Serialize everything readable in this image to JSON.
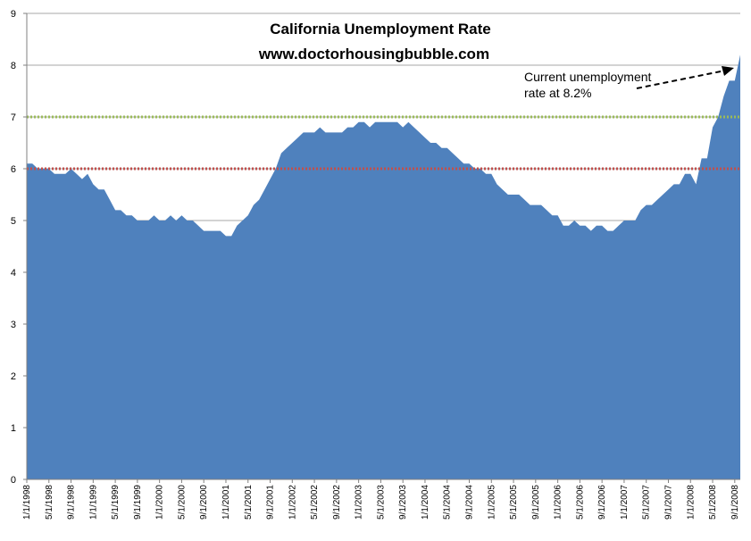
{
  "chart_data": {
    "type": "area",
    "title": "California Unemployment Rate",
    "subtitle": "www.doctorhousingbubble.com",
    "xlabel": "",
    "ylabel": "",
    "ylim": [
      0,
      9
    ],
    "yticks": [
      0,
      1,
      2,
      3,
      4,
      5,
      6,
      7,
      8,
      9
    ],
    "grid": true,
    "x_tick_labels": [
      "1/1/1998",
      "5/1/1998",
      "9/1/1998",
      "1/1/1999",
      "5/1/1999",
      "9/1/1999",
      "1/1/2000",
      "5/1/2000",
      "9/1/2000",
      "1/1/2001",
      "5/1/2001",
      "9/1/2001",
      "1/1/2002",
      "5/1/2002",
      "9/1/2002",
      "1/1/2003",
      "5/1/2003",
      "9/1/2003",
      "1/1/2004",
      "5/1/2004",
      "9/1/2004",
      "1/1/2005",
      "5/1/2005",
      "9/1/2005",
      "1/1/2006",
      "5/1/2006",
      "9/1/2006",
      "1/1/2007",
      "5/1/2007",
      "9/1/2007",
      "1/1/2008",
      "5/1/2008",
      "9/1/2008"
    ],
    "series": [
      {
        "color": "#4f81bd",
        "values": [
          6.1,
          6.1,
          6.0,
          6.0,
          6.0,
          5.9,
          5.9,
          5.9,
          6.0,
          5.9,
          5.8,
          5.9,
          5.7,
          5.6,
          5.6,
          5.4,
          5.2,
          5.2,
          5.1,
          5.1,
          5.0,
          5.0,
          5.0,
          5.1,
          5.0,
          5.0,
          5.1,
          5.0,
          5.1,
          5.0,
          5.0,
          4.9,
          4.8,
          4.8,
          4.8,
          4.8,
          4.7,
          4.7,
          4.9,
          5.0,
          5.1,
          5.3,
          5.4,
          5.6,
          5.8,
          6.0,
          6.3,
          6.4,
          6.5,
          6.6,
          6.7,
          6.7,
          6.7,
          6.8,
          6.7,
          6.7,
          6.7,
          6.7,
          6.8,
          6.8,
          6.9,
          6.9,
          6.8,
          6.9,
          6.9,
          6.9,
          6.9,
          6.9,
          6.8,
          6.9,
          6.8,
          6.7,
          6.6,
          6.5,
          6.5,
          6.4,
          6.4,
          6.3,
          6.2,
          6.1,
          6.1,
          6.0,
          6.0,
          5.9,
          5.9,
          5.7,
          5.6,
          5.5,
          5.5,
          5.5,
          5.4,
          5.3,
          5.3,
          5.3,
          5.2,
          5.1,
          5.1,
          4.9,
          4.9,
          5.0,
          4.9,
          4.9,
          4.8,
          4.9,
          4.9,
          4.8,
          4.8,
          4.9,
          5.0,
          5.0,
          5.0,
          5.2,
          5.3,
          5.3,
          5.4,
          5.5,
          5.6,
          5.7,
          5.7,
          5.9,
          5.9,
          5.7,
          6.2,
          6.2,
          6.8,
          7.0,
          7.4,
          7.7,
          7.7,
          8.2
        ]
      }
    ],
    "reference_lines": [
      {
        "value": 7.0,
        "color": "#9bbb59"
      },
      {
        "value": 6.0,
        "color": "#c0504d"
      }
    ],
    "annotation": {
      "line1": "Current unemployment",
      "line2": "rate at 8.2%"
    }
  }
}
